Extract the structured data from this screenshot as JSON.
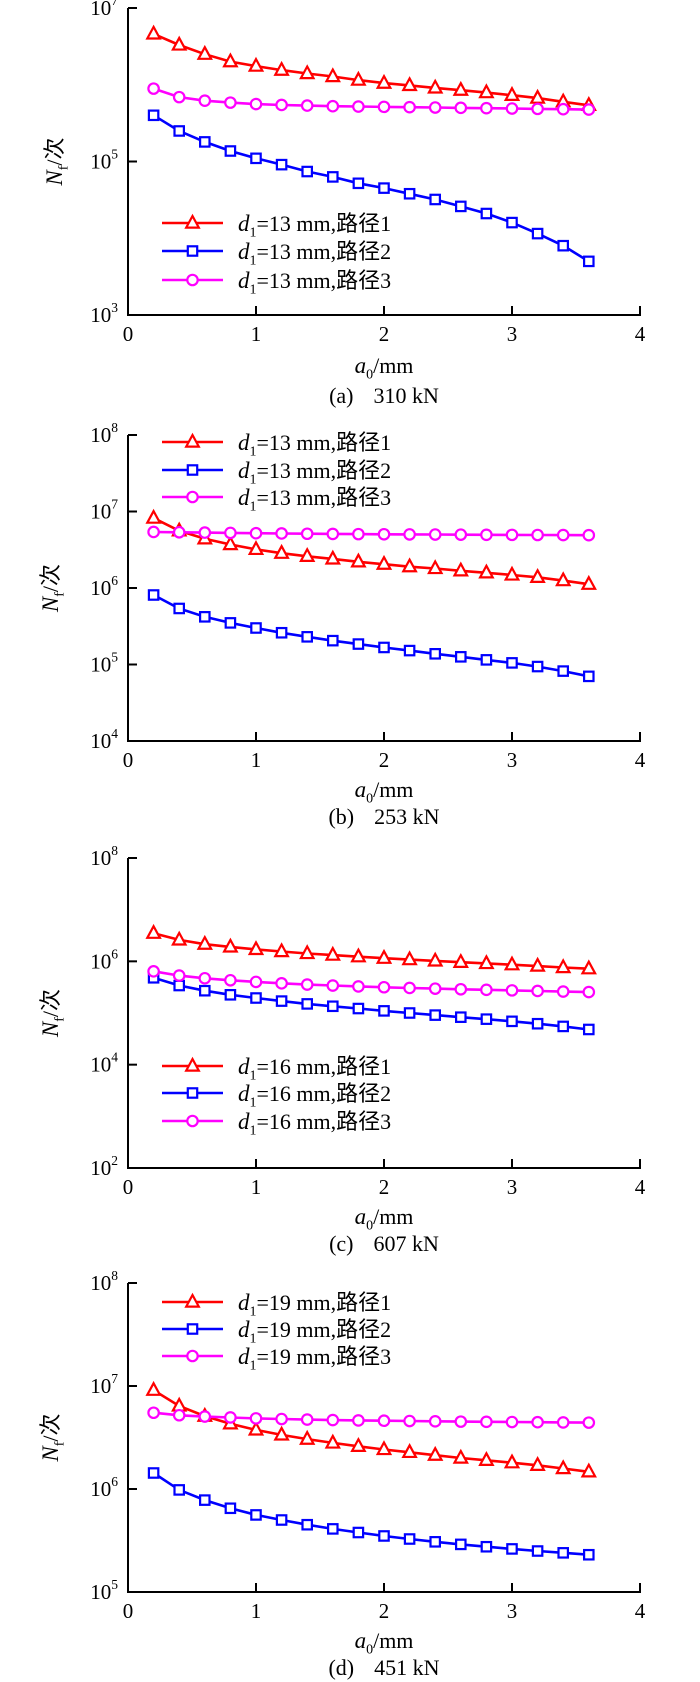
{
  "figure": {
    "background": "#ffffff",
    "text_color": "#000000"
  },
  "colors": {
    "path1": "#ff0000",
    "path2": "#0000ff",
    "path3": "#ff00ff",
    "axis": "#000000"
  },
  "chart_data": [
    {
      "type": "line",
      "caption_index": "(a)",
      "caption_label": "310 kN",
      "xlabel": {
        "var": "a",
        "sub": "0",
        "rest": "/mm"
      },
      "ylabel": {
        "var": "N",
        "sub": "f",
        "rest": "/次"
      },
      "xlim": [
        0,
        4
      ],
      "x_ticks": [
        0,
        1,
        2,
        3,
        4
      ],
      "ylim_exp": [
        3,
        7
      ],
      "y_ticks_exp": [
        3,
        5,
        7
      ],
      "legend_position": "lower-left",
      "grid": false,
      "x": [
        0.2,
        0.4,
        0.6,
        0.8,
        1.0,
        1.2,
        1.4,
        1.6,
        1.8,
        2.0,
        2.2,
        2.4,
        2.6,
        2.8,
        3.0,
        3.2,
        3.4,
        3.6
      ],
      "series": [
        {
          "label": {
            "var": "d",
            "sub": "1",
            "rest": "=13 mm,路径1"
          },
          "marker": "triangle",
          "color": "#ff0000",
          "values": [
            4600000.0,
            3300000.0,
            2500000.0,
            2000000.0,
            1750000.0,
            1550000.0,
            1400000.0,
            1280000.0,
            1150000.0,
            1050000.0,
            980000.0,
            910000.0,
            850000.0,
            790000.0,
            730000.0,
            670000.0,
            600000.0,
            540000.0
          ]
        },
        {
          "label": {
            "var": "d",
            "sub": "1",
            "rest": "=13 mm,路径2"
          },
          "marker": "square",
          "color": "#0000ff",
          "values": [
            400000.0,
            250000.0,
            180000.0,
            137000.0,
            110000.0,
            91000.0,
            74000.0,
            63000.0,
            52000.0,
            45000.0,
            38000.0,
            32000.0,
            26000.0,
            21000.0,
            16000.0,
            11500.0,
            8000.0,
            5000.0
          ]
        },
        {
          "label": {
            "var": "d",
            "sub": "1",
            "rest": "=13 mm,路径3"
          },
          "marker": "circle",
          "color": "#ff00ff",
          "values": [
            890000.0,
            690000.0,
            620000.0,
            585000.0,
            560000.0,
            545000.0,
            535000.0,
            525000.0,
            520000.0,
            515000.0,
            510000.0,
            505000.0,
            500000.0,
            495000.0,
            490000.0,
            485000.0,
            480000.0,
            475000.0
          ]
        }
      ]
    },
    {
      "type": "line",
      "caption_index": "(b)",
      "caption_label": "253 kN",
      "xlabel": {
        "var": "a",
        "sub": "0",
        "rest": "/mm"
      },
      "ylabel": {
        "var": "N",
        "sub": "f",
        "rest": "/次"
      },
      "xlim": [
        0,
        4
      ],
      "x_ticks": [
        0,
        1,
        2,
        3,
        4
      ],
      "ylim_exp": [
        4,
        8
      ],
      "y_ticks_exp": [
        4,
        5,
        6,
        7,
        8
      ],
      "legend_position": "top-left",
      "grid": false,
      "x": [
        0.2,
        0.4,
        0.6,
        0.8,
        1.0,
        1.2,
        1.4,
        1.6,
        1.8,
        2.0,
        2.2,
        2.4,
        2.6,
        2.8,
        3.0,
        3.2,
        3.4,
        3.6
      ],
      "series": [
        {
          "label": {
            "var": "d",
            "sub": "1",
            "rest": "=13 mm,路径1"
          },
          "marker": "triangle",
          "color": "#ff0000",
          "values": [
            8200000.0,
            5600000.0,
            4400000.0,
            3700000.0,
            3200000.0,
            2850000.0,
            2600000.0,
            2400000.0,
            2200000.0,
            2050000.0,
            1900000.0,
            1800000.0,
            1680000.0,
            1580000.0,
            1480000.0,
            1380000.0,
            1250000.0,
            1120000.0
          ]
        },
        {
          "label": {
            "var": "d",
            "sub": "1",
            "rest": "=13 mm,路径2"
          },
          "marker": "square",
          "color": "#0000ff",
          "values": [
            810000.0,
            540000.0,
            420000.0,
            350000.0,
            300000.0,
            260000.0,
            230000.0,
            205000.0,
            185000.0,
            167000.0,
            152000.0,
            138000.0,
            126000.0,
            115000.0,
            105000.0,
            94000.0,
            82000.0,
            70000.0
          ]
        },
        {
          "label": {
            "var": "d",
            "sub": "1",
            "rest": "=13 mm,路径3"
          },
          "marker": "circle",
          "color": "#ff00ff",
          "values": [
            5400000.0,
            5350000.0,
            5300000.0,
            5250000.0,
            5200000.0,
            5160000.0,
            5120000.0,
            5090000.0,
            5060000.0,
            5040000.0,
            5020000.0,
            5000000.0,
            4980000.0,
            4960000.0,
            4950000.0,
            4930000.0,
            4920000.0,
            4900000.0
          ]
        }
      ]
    },
    {
      "type": "line",
      "caption_index": "(c)",
      "caption_label": "607 kN",
      "xlabel": {
        "var": "a",
        "sub": "0",
        "rest": "/mm"
      },
      "ylabel": {
        "var": "N",
        "sub": "f",
        "rest": "/次"
      },
      "xlim": [
        0,
        4
      ],
      "x_ticks": [
        0,
        1,
        2,
        3,
        4
      ],
      "ylim_exp": [
        2,
        8
      ],
      "y_ticks_exp": [
        2,
        4,
        6,
        8
      ],
      "legend_position": "lower-left",
      "grid": false,
      "x": [
        0.2,
        0.4,
        0.6,
        0.8,
        1.0,
        1.2,
        1.4,
        1.6,
        1.8,
        2.0,
        2.2,
        2.4,
        2.6,
        2.8,
        3.0,
        3.2,
        3.4,
        3.6
      ],
      "series": [
        {
          "label": {
            "var": "d",
            "sub": "1",
            "rest": "=16 mm,路径1"
          },
          "marker": "triangle",
          "color": "#ff0000",
          "values": [
            3500000.0,
            2600000.0,
            2150000.0,
            1900000.0,
            1700000.0,
            1550000.0,
            1420000.0,
            1320000.0,
            1230000.0,
            1150000.0,
            1080000.0,
            1020000.0,
            960000.0,
            910000.0,
            860000.0,
            810000.0,
            760000.0,
            720000.0
          ]
        },
        {
          "label": {
            "var": "d",
            "sub": "1",
            "rest": "=16 mm,路径2"
          },
          "marker": "square",
          "color": "#0000ff",
          "values": [
            480000.0,
            340000.0,
            270000.0,
            225000.0,
            195000.0,
            170000.0,
            150000.0,
            135000.0,
            122000.0,
            110000.0,
            100000.0,
            91000.0,
            83000.0,
            76000.0,
            69000.0,
            62000.0,
            55000.0,
            48000.0
          ]
        },
        {
          "label": {
            "var": "d",
            "sub": "1",
            "rest": "=16 mm,路径3"
          },
          "marker": "circle",
          "color": "#ff00ff",
          "values": [
            640000.0,
            530000.0,
            470000.0,
            430000.0,
            400000.0,
            375000.0,
            355000.0,
            340000.0,
            327000.0,
            315000.0,
            305000.0,
            296000.0,
            288000.0,
            281000.0,
            274000.0,
            267000.0,
            260000.0,
            254000.0
          ]
        }
      ]
    },
    {
      "type": "line",
      "caption_index": "(d)",
      "caption_label": "451 kN",
      "xlabel": {
        "var": "a",
        "sub": "0",
        "rest": "/mm"
      },
      "ylabel": {
        "var": "N",
        "sub": "f",
        "rest": "/次"
      },
      "xlim": [
        0,
        4
      ],
      "x_ticks": [
        0,
        1,
        2,
        3,
        4
      ],
      "ylim_exp": [
        5,
        8
      ],
      "y_ticks_exp": [
        5,
        6,
        7,
        8
      ],
      "legend_position": "top-left",
      "grid": false,
      "x": [
        0.2,
        0.4,
        0.6,
        0.8,
        1.0,
        1.2,
        1.4,
        1.6,
        1.8,
        2.0,
        2.2,
        2.4,
        2.6,
        2.8,
        3.0,
        3.2,
        3.4,
        3.6
      ],
      "series": [
        {
          "label": {
            "var": "d",
            "sub": "1",
            "rest": "=19 mm,路径1"
          },
          "marker": "triangle",
          "color": "#ff0000",
          "values": [
            9100000.0,
            6400000.0,
            5100000.0,
            4300000.0,
            3750000.0,
            3350000.0,
            3050000.0,
            2800000.0,
            2600000.0,
            2420000.0,
            2270000.0,
            2130000.0,
            2000000.0,
            1900000.0,
            1800000.0,
            1700000.0,
            1580000.0,
            1470000.0
          ]
        },
        {
          "label": {
            "var": "d",
            "sub": "1",
            "rest": "=19 mm,路径2"
          },
          "marker": "square",
          "color": "#0000ff",
          "values": [
            1430000.0,
            980000.0,
            780000.0,
            650000.0,
            560000.0,
            500000.0,
            450000.0,
            410000.0,
            378000.0,
            350000.0,
            327000.0,
            307000.0,
            290000.0,
            275000.0,
            262000.0,
            250000.0,
            240000.0,
            230000.0
          ]
        },
        {
          "label": {
            "var": "d",
            "sub": "1",
            "rest": "=19 mm,路径3"
          },
          "marker": "circle",
          "color": "#ff00ff",
          "values": [
            5500000.0,
            5200000.0,
            5050000.0,
            4950000.0,
            4850000.0,
            4780000.0,
            4720000.0,
            4670000.0,
            4630000.0,
            4600000.0,
            4570000.0,
            4540000.0,
            4510000.0,
            4490000.0,
            4470000.0,
            4450000.0,
            4430000.0,
            4410000.0
          ]
        }
      ]
    }
  ]
}
